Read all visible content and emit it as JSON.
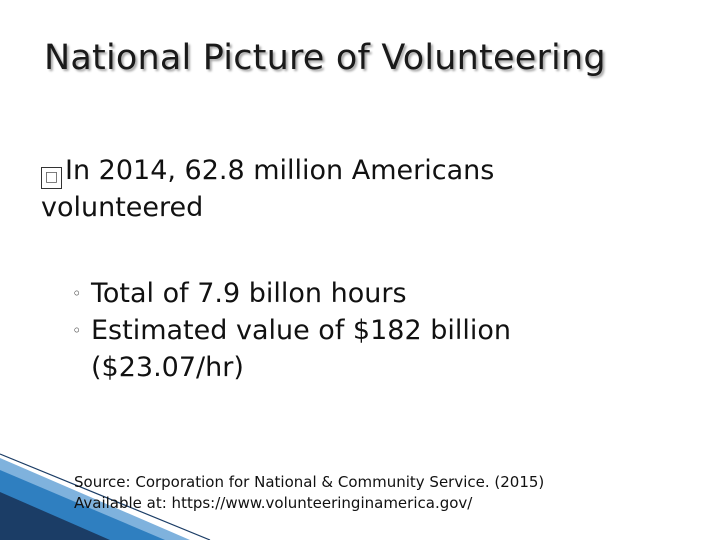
{
  "slide": {
    "title": "National Picture of Volunteering",
    "main_bullet": {
      "marker_glyph": "□",
      "text": "In 2014, 62.8 million Americans volunteered"
    },
    "sub_bullets": [
      {
        "marker_glyph": "◦",
        "text": "Total of 7.9 billon hours"
      },
      {
        "marker_glyph": "◦",
        "text": "Estimated value of $182 billion ($23.07/hr)"
      }
    ],
    "source": {
      "line1": "Source: Corporation for National & Community Service. (2015)",
      "line2": "Available at: https://www.volunteeringinamerica.gov/"
    }
  },
  "colors": {
    "background": "#ffffff",
    "text": "#111111",
    "accent_blue": "#2f7fc0",
    "accent_dark": "#1b3d66"
  }
}
